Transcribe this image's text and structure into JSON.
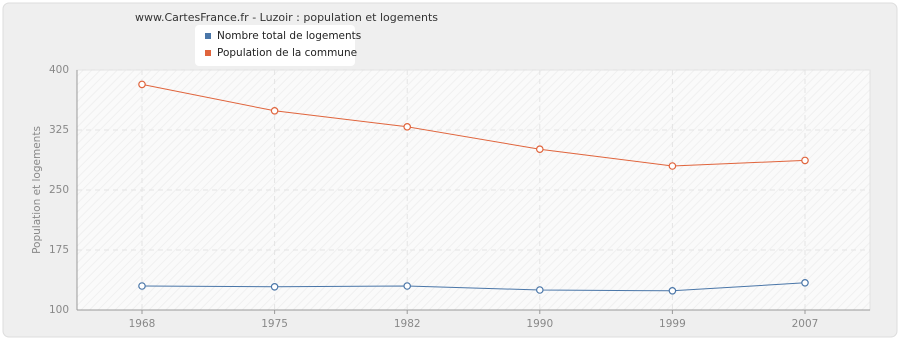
{
  "chart_data": {
    "type": "line",
    "title": "www.CartesFrance.fr - Luzoir : population et logements",
    "y_label": "Population et logements",
    "categories": [
      "1968",
      "1975",
      "1982",
      "1990",
      "1999",
      "2007"
    ],
    "series": [
      {
        "name": "Nombre total de logements",
        "color": "#4a76a8",
        "values": [
          130,
          129,
          130,
          125,
          124,
          134
        ]
      },
      {
        "name": "Population de la commune",
        "color": "#e0643c",
        "values": [
          382,
          349,
          329,
          301,
          280,
          287
        ]
      }
    ],
    "ylim": [
      100,
      400
    ],
    "yticks": [
      100,
      175,
      250,
      325,
      400
    ],
    "grid": true
  }
}
